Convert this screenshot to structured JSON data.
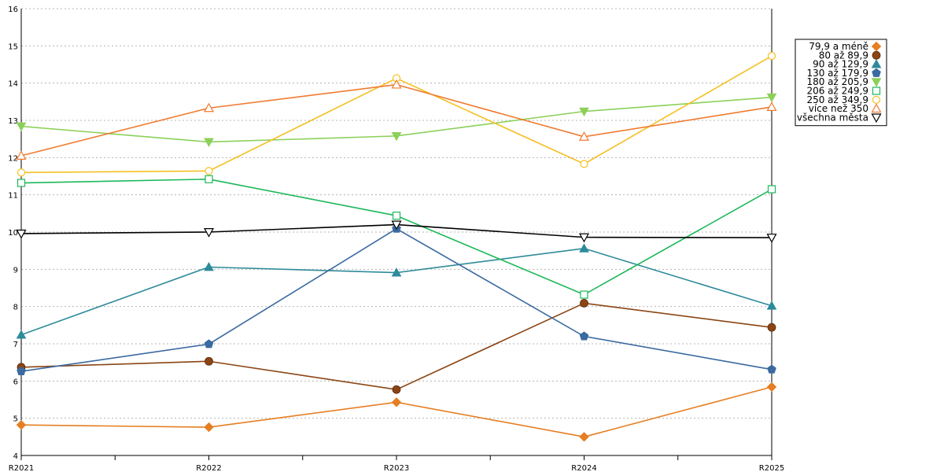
{
  "chart_data": {
    "type": "line",
    "categories": [
      "R2021",
      "R2022",
      "R2023",
      "R2024",
      "R2025"
    ],
    "ylim": [
      4,
      16
    ],
    "yticks": [
      4,
      5,
      6,
      7,
      8,
      9,
      10,
      11,
      12,
      13,
      14,
      15,
      16
    ],
    "grid": "horizontal-dotted",
    "legend_position": "right",
    "series": [
      {
        "name": "79,9 a méně",
        "color": "#e67e22",
        "marker": "diamond",
        "values": [
          4.82,
          4.76,
          5.43,
          4.5,
          5.84
        ]
      },
      {
        "name": "80 až 89,9",
        "color": "#8b4513",
        "marker": "circle",
        "values": [
          6.37,
          6.53,
          5.77,
          8.09,
          7.44
        ]
      },
      {
        "name": "90 až 129,9",
        "color": "#2e8b9a",
        "marker": "triangle-up",
        "values": [
          7.24,
          9.06,
          8.91,
          9.56,
          8.02
        ]
      },
      {
        "name": "130 až 179,9",
        "color": "#3a6aa0",
        "marker": "pentagon",
        "values": [
          6.26,
          6.99,
          10.09,
          7.2,
          6.31
        ]
      },
      {
        "name": "180 až 205,9",
        "color": "#8cd05a",
        "marker": "triangle-down",
        "values": [
          12.84,
          12.42,
          12.58,
          13.24,
          13.62
        ]
      },
      {
        "name": "206 až 249,9",
        "color": "#1db85a",
        "marker": "square-open",
        "values": [
          11.32,
          11.42,
          10.44,
          8.32,
          11.15
        ]
      },
      {
        "name": "250 až 349,9",
        "color": "#f5c022",
        "marker": "circle-open",
        "values": [
          11.6,
          11.64,
          14.13,
          11.83,
          14.73
        ]
      },
      {
        "name": "více než 350",
        "color": "#f07b30",
        "marker": "triangle-up-open",
        "values": [
          12.05,
          13.33,
          13.96,
          12.56,
          13.36
        ]
      },
      {
        "name": "všechna města",
        "color": "#000000",
        "marker": "triangle-down-open",
        "values": [
          9.96,
          10.0,
          10.2,
          9.86,
          9.85
        ]
      }
    ]
  }
}
